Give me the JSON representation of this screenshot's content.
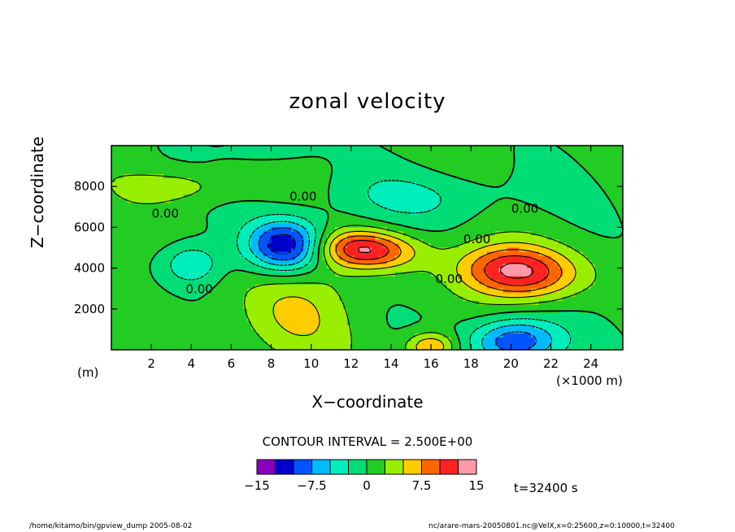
{
  "chart_data": {
    "type": "contour",
    "title": "zonal velocity",
    "xlabel": "X−coordinate",
    "ylabel": "Z−coordinate",
    "x_unit_left": "(m)",
    "x_unit_right": "(×1000 m)",
    "xlim": [
      0,
      25.6
    ],
    "ylim": [
      0,
      10000
    ],
    "x_ticks": [
      "2",
      "4",
      "6",
      "8",
      "10",
      "12",
      "14",
      "16",
      "18",
      "20",
      "22",
      "24"
    ],
    "x_tick_values": [
      2,
      4,
      6,
      8,
      10,
      12,
      14,
      16,
      18,
      20,
      22,
      24
    ],
    "y_ticks": [
      "2000",
      "4000",
      "6000",
      "8000"
    ],
    "y_tick_values": [
      2000,
      4000,
      6000,
      8000
    ],
    "contour_interval": "CONTOUR INTERVAL = 2.500E+00",
    "contour_labels": [
      {
        "text": "0.00",
        "x": 2.7,
        "y": 6650
      },
      {
        "text": "0.00",
        "x": 9.6,
        "y": 7500
      },
      {
        "text": "0.00",
        "x": 4.4,
        "y": 2950
      },
      {
        "text": "0.00",
        "x": 18.3,
        "y": 5400
      },
      {
        "text": "0.00",
        "x": 20.7,
        "y": 6900
      },
      {
        "text": "0.00",
        "x": 16.9,
        "y": 3450
      }
    ],
    "field_features": [
      {
        "sign": "negative",
        "x": 8.8,
        "y": 5100,
        "sx": 1.4,
        "sy": 900,
        "amp": -14
      },
      {
        "sign": "negative",
        "x": 4.0,
        "y": 4200,
        "sx": 1.0,
        "sy": 700,
        "amp": -5.5
      },
      {
        "sign": "negative",
        "x": 20.2,
        "y": 400,
        "sx": 1.6,
        "sy": 800,
        "amp": -11
      },
      {
        "sign": "positive",
        "x": 12.6,
        "y": 4900,
        "sx": 1.8,
        "sy": 650,
        "amp": 12,
        "tilt": -0.28
      },
      {
        "sign": "positive",
        "x": 20.3,
        "y": 3850,
        "sx": 2.0,
        "sy": 900,
        "amp": 13,
        "tilt": -0.22
      },
      {
        "sign": "positive",
        "x": 9.0,
        "y": 1800,
        "sx": 2.0,
        "sy": 1800,
        "amp": 4.5
      },
      {
        "sign": "positive",
        "x": 16.0,
        "y": 150,
        "sx": 0.9,
        "sy": 500,
        "amp": 8
      },
      {
        "sign": "negative",
        "x": 15.5,
        "y": 7500,
        "sx": 3.5,
        "sy": 900,
        "amp": -3.2
      },
      {
        "sign": "positive",
        "x": 3.5,
        "y": 8000,
        "sx": 2.0,
        "sy": 600,
        "amp": 3.5
      },
      {
        "sign": "negative",
        "x": 8.0,
        "y": 9800,
        "sx": 1.5,
        "sy": 500,
        "amp": -2.5
      }
    ],
    "colorbar": {
      "colors": [
        "#8800bb",
        "#0000cc",
        "#0055ff",
        "#00bbff",
        "#00eebb",
        "#00dd77",
        "#22cc22",
        "#99ee00",
        "#ffcc00",
        "#ff6600",
        "#ff2222",
        "#ff99aa"
      ],
      "labels": [
        "−15",
        "−7.5",
        "0",
        "7.5",
        "15"
      ],
      "label_values": [
        -15,
        -7.5,
        0,
        7.5,
        15
      ],
      "levels": [
        -15,
        -12.5,
        -10,
        -7.5,
        -5,
        -2.5,
        0,
        2.5,
        5,
        7.5,
        10,
        12.5,
        15
      ]
    },
    "time_label": "t=32400 s"
  },
  "footer": {
    "left": "/home/kitamo/bin/gpview_dump   2005-08-02",
    "right": "nc/arare-mars-20050801.nc@VelX,x=0:25600,z=0:10000,t=32400"
  }
}
